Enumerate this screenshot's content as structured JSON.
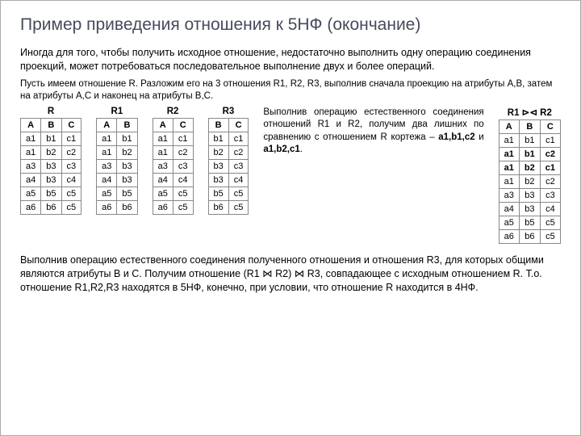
{
  "title": "Пример приведения отношения к 5НФ (окончание)",
  "lead": "Иногда для того, чтобы получить исходное отношение, недостаточно выполнить одну операцию соединения проекций, может потребоваться последовательное выполнение двух и более операций.",
  "sub": "Пусть имеем отношение R. Разложим его на 3 отношения R1, R2, R3, выполнив сначала проекцию на атрибуты A,B, затем на атрибуты A,C и наконец на атрибуты B,C.",
  "tables": {
    "R": {
      "name": "R",
      "cols": [
        "A",
        "B",
        "C"
      ],
      "rows": [
        [
          "a1",
          "b1",
          "c1"
        ],
        [
          "a1",
          "b2",
          "c2"
        ],
        [
          "a3",
          "b3",
          "c3"
        ],
        [
          "a4",
          "b3",
          "c4"
        ],
        [
          "a5",
          "b5",
          "c5"
        ],
        [
          "a6",
          "b6",
          "c5"
        ]
      ]
    },
    "R1": {
      "name": "R1",
      "cols": [
        "A",
        "B"
      ],
      "rows": [
        [
          "a1",
          "b1"
        ],
        [
          "a1",
          "b2"
        ],
        [
          "a3",
          "b3"
        ],
        [
          "a4",
          "b3"
        ],
        [
          "a5",
          "b5"
        ],
        [
          "a6",
          "b6"
        ]
      ]
    },
    "R2": {
      "name": "R2",
      "cols": [
        "A",
        "C"
      ],
      "rows": [
        [
          "a1",
          "c1"
        ],
        [
          "a1",
          "c2"
        ],
        [
          "a3",
          "c3"
        ],
        [
          "a4",
          "c4"
        ],
        [
          "a5",
          "c5"
        ],
        [
          "a6",
          "c5"
        ]
      ]
    },
    "R3": {
      "name": "R3",
      "cols": [
        "B",
        "C"
      ],
      "rows": [
        [
          "b1",
          "c1"
        ],
        [
          "b2",
          "c2"
        ],
        [
          "b3",
          "c3"
        ],
        [
          "b3",
          "c4"
        ],
        [
          "b5",
          "c5"
        ],
        [
          "b6",
          "c5"
        ]
      ]
    },
    "JOIN": {
      "name": "R1 ⊳⊲ R2",
      "cols": [
        "A",
        "B",
        "C"
      ],
      "rows": [
        [
          "a1",
          "b1",
          "c1"
        ],
        [
          "a1",
          "b1",
          "c2"
        ],
        [
          "a1",
          "b2",
          "c1"
        ],
        [
          "a1",
          "b2",
          "c2"
        ],
        [
          "a3",
          "b3",
          "c3"
        ],
        [
          "a4",
          "b3",
          "c4"
        ],
        [
          "a5",
          "b5",
          "c5"
        ],
        [
          "a6",
          "b6",
          "c5"
        ]
      ],
      "highlight": [
        1,
        2
      ]
    }
  },
  "mid_html": "Выполнив операцию естественного соединения отношений R1 и R2, получим два лишних по сравнению с отношением R кортежа – <b>a1,b1,c2</b> и <b>a1,b2,c1</b>.",
  "bottom": "Выполнив операцию естественного соединения полученного отношения и отношения R3, для которых общими являются атрибуты B и C. Получим отношение (R1 ⋈ R2) ⋈ R3, совпадающее с исходным отношением R. Т.о. отношение R1,R2,R3 находятся в 5НФ, конечно, при условии, что отношение R находится в 4НФ.",
  "colors": {
    "title": "#444c5a",
    "border": "#888888",
    "text": "#000000"
  }
}
